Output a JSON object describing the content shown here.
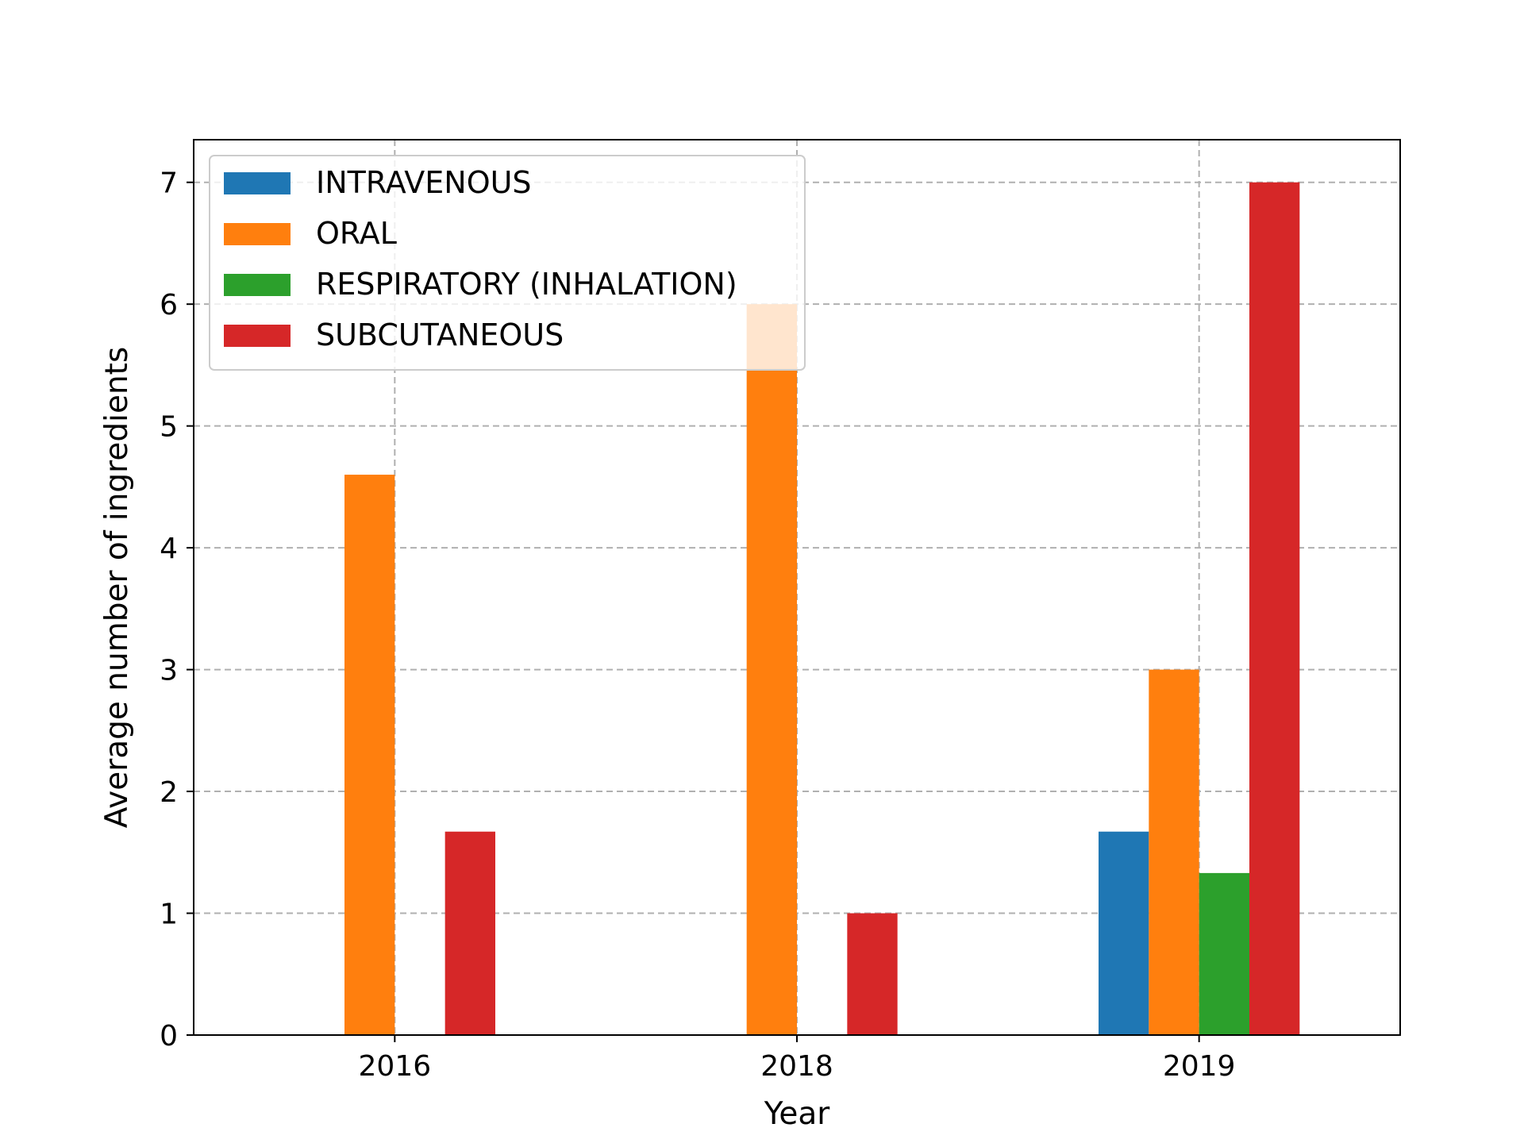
{
  "chart_data": {
    "type": "bar",
    "title": "",
    "xlabel": "Year",
    "ylabel": "Average number of ingredients",
    "categories": [
      "2016",
      "2018",
      "2019"
    ],
    "series": [
      {
        "name": "INTRAVENOUS",
        "color": "#1f77b4",
        "values": [
          null,
          null,
          1.67
        ]
      },
      {
        "name": "ORAL",
        "color": "#ff7f0e",
        "values": [
          4.6,
          6.0,
          3.0
        ]
      },
      {
        "name": "RESPIRATORY (INHALATION)",
        "color": "#2ca02c",
        "values": [
          null,
          null,
          1.33
        ]
      },
      {
        "name": "SUBCUTANEOUS",
        "color": "#d62728",
        "values": [
          1.67,
          1.0,
          7.0
        ]
      }
    ],
    "ylim": [
      0,
      7.35
    ],
    "yticks": [
      "0",
      "1",
      "2",
      "3",
      "4",
      "5",
      "6",
      "7"
    ],
    "grid": true,
    "legend_position": "top-left"
  }
}
